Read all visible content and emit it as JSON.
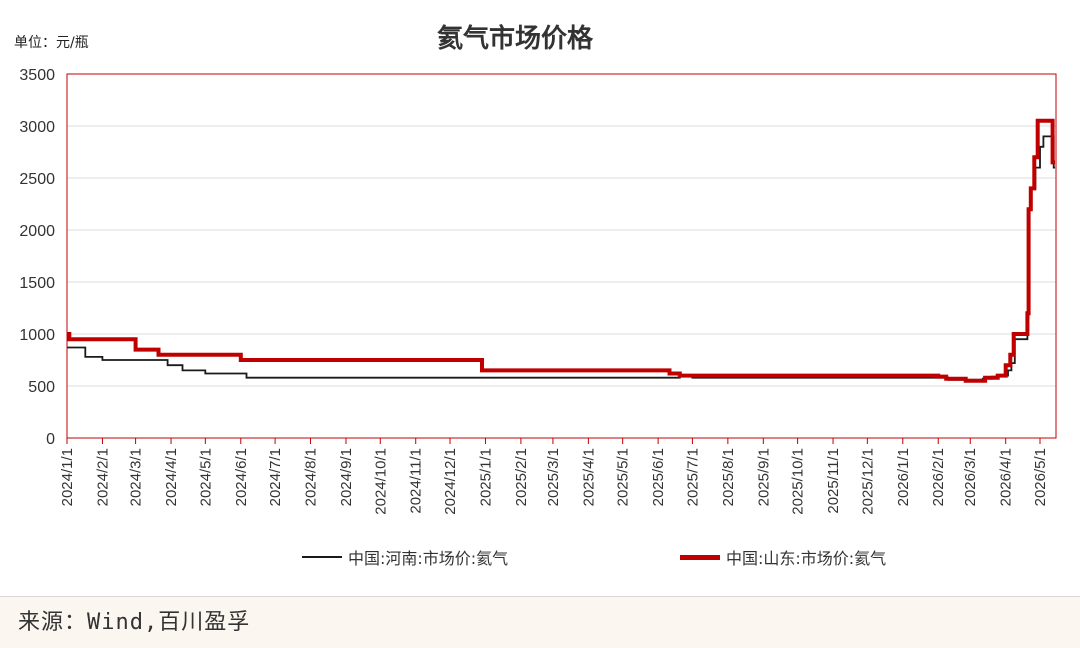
{
  "unit_label": "单位：元/瓶",
  "source": "来源：Wind,百川盈孚",
  "chart_data": {
    "type": "line",
    "title": "氦气市场价格",
    "xlabel": "",
    "ylabel": "",
    "ylim": [
      0,
      3500
    ],
    "yticks": [
      0,
      500,
      1000,
      1500,
      2000,
      2500,
      3000,
      3500
    ],
    "xlim": [
      "2024-01-01",
      "2026-05-15"
    ],
    "xticks": [
      "2024/1/1",
      "2024/2/1",
      "2024/3/1",
      "2024/4/1",
      "2024/5/1",
      "2024/6/1",
      "2024/7/1",
      "2024/8/1",
      "2024/9/1",
      "2024/10/1",
      "2024/11/1",
      "2024/12/1",
      "2025/1/1",
      "2025/2/1",
      "2025/3/1",
      "2025/4/1",
      "2025/5/1",
      "2025/6/1",
      "2025/7/1",
      "2025/8/1",
      "2025/9/1",
      "2025/10/1",
      "2025/11/1",
      "2025/12/1",
      "2026/1/1",
      "2026/2/1",
      "2026/3/1",
      "2026/4/1",
      "2026/5/1"
    ],
    "grid": true,
    "legend_position": "bottom",
    "series": [
      {
        "name": "中国:河南:市场价:氦气",
        "color": "#1a1a1a",
        "step": true,
        "points": [
          [
            "2024-01-01",
            870
          ],
          [
            "2024-01-17",
            780
          ],
          [
            "2024-02-01",
            750
          ],
          [
            "2024-03-29",
            700
          ],
          [
            "2024-04-11",
            650
          ],
          [
            "2024-05-01",
            620
          ],
          [
            "2024-06-06",
            580
          ],
          [
            "2025-06-15",
            580
          ],
          [
            "2025-06-20",
            590
          ],
          [
            "2025-07-01",
            580
          ],
          [
            "2026-02-01",
            580
          ],
          [
            "2026-02-10",
            560
          ],
          [
            "2026-03-12",
            570
          ],
          [
            "2026-03-20",
            590
          ],
          [
            "2026-04-01",
            600
          ],
          [
            "2026-04-03",
            650
          ],
          [
            "2026-04-06",
            720
          ],
          [
            "2026-04-09",
            950
          ],
          [
            "2026-04-20",
            1150
          ],
          [
            "2026-04-21",
            2200
          ],
          [
            "2026-04-23",
            2400
          ],
          [
            "2026-04-27",
            2600
          ],
          [
            "2026-05-01",
            2800
          ],
          [
            "2026-05-04",
            2900
          ],
          [
            "2026-05-13",
            2600
          ]
        ]
      },
      {
        "name": "中国:山东:市场价:氦气",
        "color": "#c00000",
        "step": true,
        "points": [
          [
            "2024-01-01",
            1000
          ],
          [
            "2024-01-03",
            950
          ],
          [
            "2024-03-01",
            850
          ],
          [
            "2024-03-21",
            800
          ],
          [
            "2024-06-01",
            750
          ],
          [
            "2024-12-29",
            650
          ],
          [
            "2025-06-11",
            620
          ],
          [
            "2025-06-20",
            600
          ],
          [
            "2026-02-01",
            590
          ],
          [
            "2026-02-08",
            570
          ],
          [
            "2026-02-25",
            550
          ],
          [
            "2026-03-14",
            580
          ],
          [
            "2026-03-25",
            600
          ],
          [
            "2026-04-01",
            700
          ],
          [
            "2026-04-05",
            800
          ],
          [
            "2026-04-08",
            1000
          ],
          [
            "2026-04-20",
            1200
          ],
          [
            "2026-04-21",
            2200
          ],
          [
            "2026-04-23",
            2400
          ],
          [
            "2026-04-26",
            2700
          ],
          [
            "2026-04-29",
            3050
          ],
          [
            "2026-05-12",
            2650
          ]
        ]
      }
    ]
  }
}
